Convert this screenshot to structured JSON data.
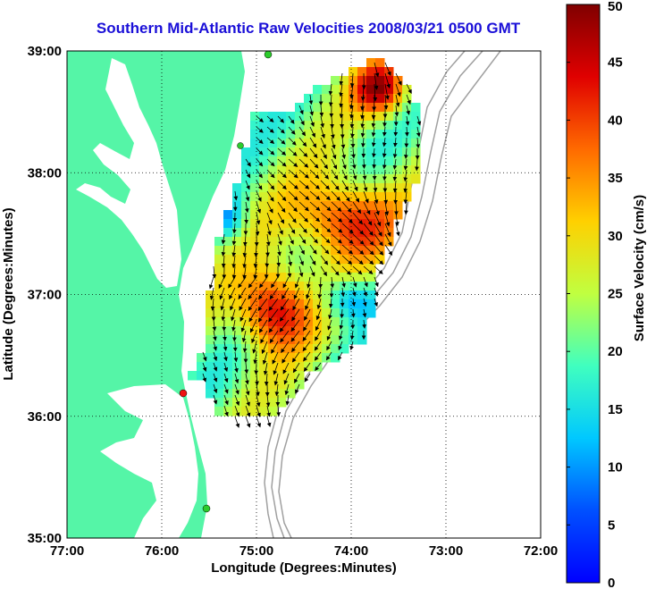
{
  "title": "Southern Mid-Atlantic Raw Velocities 2008/03/21 0500 GMT",
  "xlabel": "Longitude (Degrees:Minutes)",
  "ylabel": "Latitude (Degrees:Minutes)",
  "x_ticks": [
    "77:00",
    "76:00",
    "75:00",
    "74:00",
    "73:00",
    "72:00"
  ],
  "y_ticks": [
    "39:00",
    "38:00",
    "37:00",
    "36:00",
    "35:00"
  ],
  "colorbar": {
    "label": "Surface Velocity (cm/s)",
    "ticks": [
      "0",
      "5",
      "10",
      "15",
      "20",
      "25",
      "30",
      "35",
      "40",
      "45",
      "50"
    ],
    "range": [
      0,
      50
    ]
  },
  "colors": {
    "land": "#55f5a7",
    "title": "#1a0fd8",
    "bathymetry": "#a0a0a0",
    "station_green": "#2ccc2c",
    "station_red": "#ee1111"
  },
  "icons": {
    "vectors": "arrow-vector-field"
  }
}
